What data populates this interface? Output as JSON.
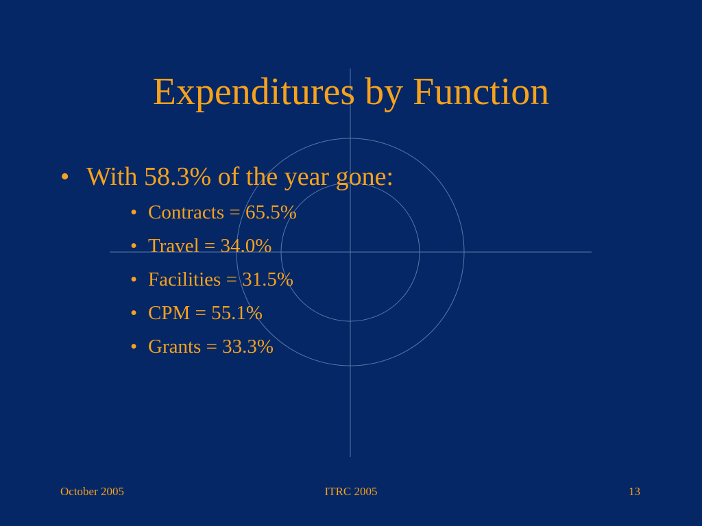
{
  "title": "Expenditures by Function",
  "bullet": "With 58.3% of the year gone:",
  "items": [
    "Contracts = 65.5%",
    "Travel = 34.0%",
    "Facilities = 31.5%",
    "CPM = 55.1%",
    "Grants = 33.3%"
  ],
  "footer": {
    "left": "October 2005",
    "center": "ITRC 2005",
    "right": "13"
  }
}
